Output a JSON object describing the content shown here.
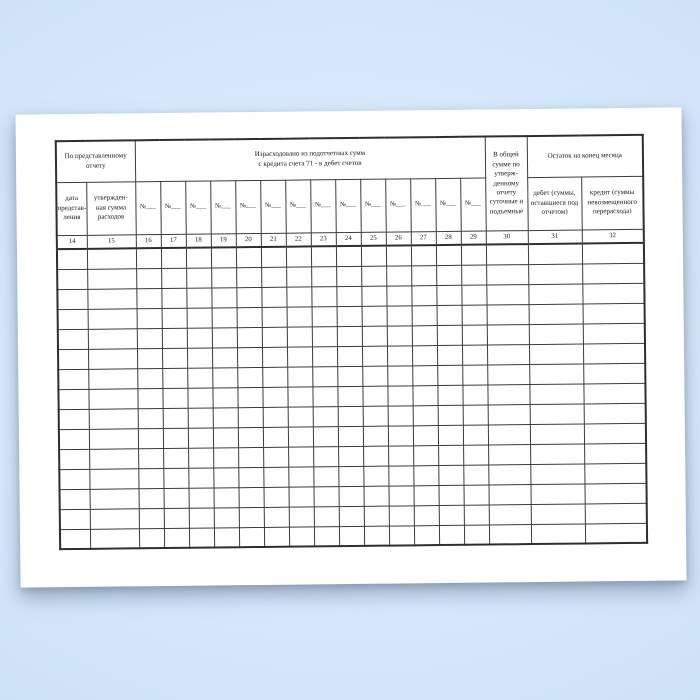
{
  "table": {
    "group_by_report": "По представленному\nотчету",
    "group_spent": "Израсходовано из подотчетных сумм\nс кредита счета 71 - в дебет счетов",
    "col30_header": "В общей\nсумме по\nутверж-\nденному\nотчету\nсуточные и\nподъемные",
    "group_balance": "Остаток на конец месяца",
    "col14_header": "дата\nпредстав-\nления",
    "col15_header": "утвержден-\nная сумма\nрасходов",
    "account_no_label": "№___",
    "col31_header": "дебет (суммы,\nоставшиеся под\nотчетом)",
    "col32_header": "кредит (суммы\nневозмещенного\nперерасхода)",
    "column_numbers": [
      "14",
      "15",
      "16",
      "17",
      "18",
      "19",
      "20",
      "21",
      "22",
      "23",
      "24",
      "25",
      "26",
      "27",
      "28",
      "29",
      "30",
      "31",
      "32"
    ],
    "empty_row_count": 15
  }
}
